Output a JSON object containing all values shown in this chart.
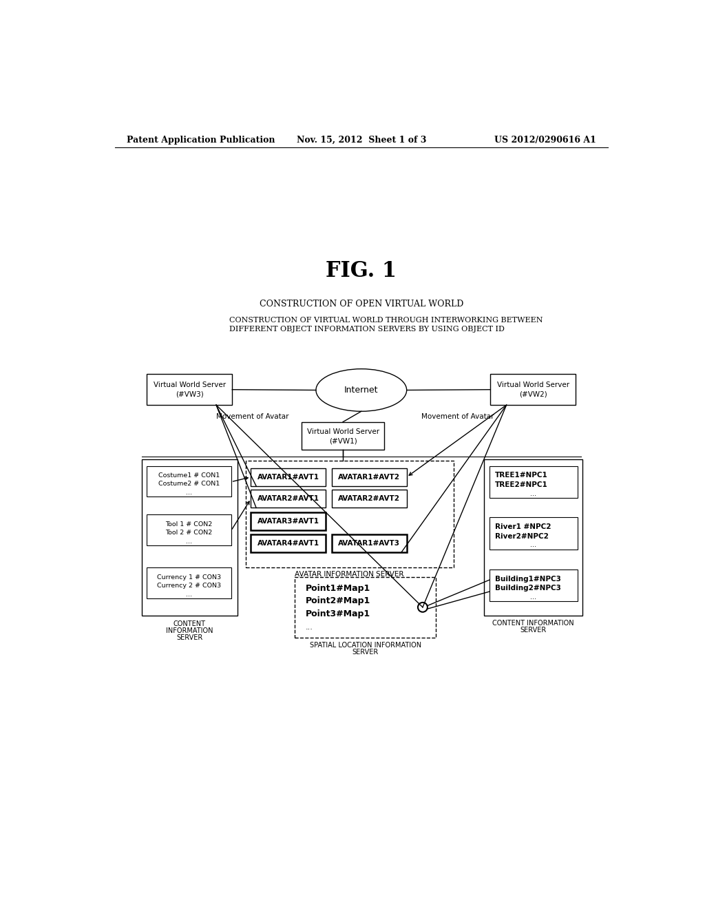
{
  "header_left": "Patent Application Publication",
  "header_mid": "Nov. 15, 2012  Sheet 1 of 3",
  "header_right": "US 2012/0290616 A1",
  "fig_label": "FIG. 1",
  "title1": "CONSTRUCTION OF OPEN VIRTUAL WORLD",
  "title2_line1": "CONSTRUCTION OF VIRTUAL WORLD THROUGH INTERWORKING BETWEEN",
  "title2_line2": "DIFFERENT OBJECT INFORMATION SERVERS BY USING OBJECT ID",
  "bg_color": "#ffffff"
}
